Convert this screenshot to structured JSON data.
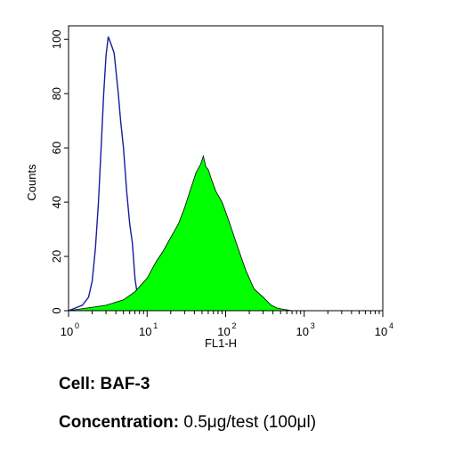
{
  "chart_data": {
    "type": "area",
    "xlabel": "FL1-H",
    "ylabel": "Counts",
    "xscale": "log",
    "xlim": [
      1,
      10000
    ],
    "ylim": [
      0,
      105
    ],
    "x_ticks": [
      {
        "value": 1,
        "base": "10",
        "exp": "0"
      },
      {
        "value": 10,
        "base": "10",
        "exp": "1"
      },
      {
        "value": 100,
        "base": "10",
        "exp": "2"
      },
      {
        "value": 1000,
        "base": "10",
        "exp": "3"
      },
      {
        "value": 10000,
        "base": "10",
        "exp": "4"
      }
    ],
    "y_ticks": [
      0,
      20,
      40,
      60,
      80,
      100
    ],
    "grid": false,
    "series": [
      {
        "style": "outline",
        "color": "#1a1aa0",
        "x": [
          1,
          1.5,
          1.8,
          2.0,
          2.2,
          2.4,
          2.6,
          2.8,
          3.0,
          3.2,
          3.5,
          3.8,
          4.0,
          4.3,
          4.6,
          5.0,
          5.5,
          6.0,
          6.5,
          7.0,
          7.5,
          8.0,
          9.0,
          10
        ],
        "y": [
          0,
          2,
          5,
          11,
          23,
          40,
          60,
          80,
          94,
          101,
          98,
          95,
          89,
          80,
          70,
          60,
          44,
          32,
          25,
          12,
          6,
          3,
          1,
          0
        ]
      },
      {
        "style": "filled",
        "color": "#00ff00",
        "x": [
          1,
          3,
          5,
          7,
          10,
          13,
          16,
          20,
          25,
          30,
          36,
          42,
          48,
          52,
          56,
          60,
          65,
          75,
          90,
          110,
          140,
          180,
          230,
          300,
          380,
          450,
          550,
          700
        ],
        "y": [
          0,
          2,
          4,
          7,
          12,
          18,
          22,
          27,
          32,
          38,
          45,
          51,
          54,
          57,
          53,
          52,
          49,
          44,
          40,
          33,
          24,
          15,
          8,
          5,
          2,
          1,
          0.5,
          0
        ]
      }
    ]
  },
  "caption": {
    "cell_label": "Cell:",
    "cell_value": "BAF-3",
    "conc_label": "Concentration:",
    "conc_value": "0.5μg/test (100μl)"
  }
}
